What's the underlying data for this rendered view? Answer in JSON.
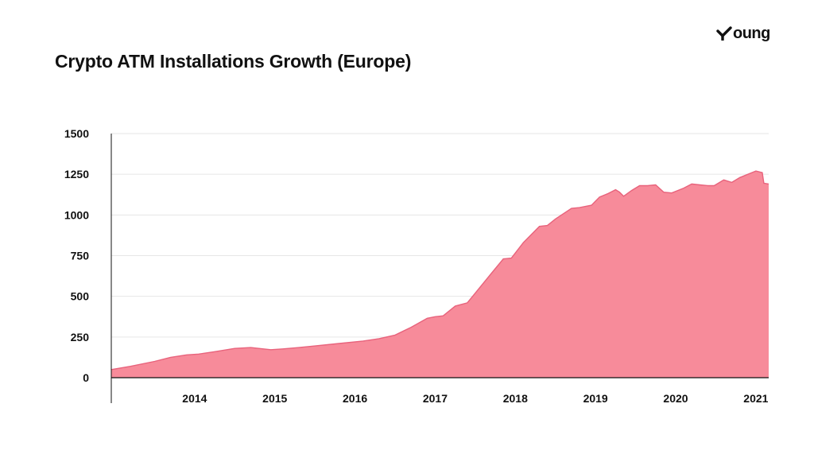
{
  "logo": {
    "text": "oung",
    "icon": "check-y-icon"
  },
  "chart_data": {
    "type": "area",
    "title": "Crypto ATM Installations Growth (Europe)",
    "xlabel": "",
    "ylabel": "",
    "ylim": [
      0,
      1500
    ],
    "xlim": [
      2013.46,
      2021.66
    ],
    "y_ticks": [
      0,
      250,
      500,
      750,
      1000,
      1250,
      1500
    ],
    "x_ticks": [
      2014,
      2015,
      2016,
      2017,
      2018,
      2019,
      2020,
      2021
    ],
    "grid": true,
    "legend": "none",
    "color": "#f78b9a",
    "line_color": "#e8637c",
    "series": [
      {
        "x": [
          2013.46,
          2013.7,
          2014.0,
          2014.2,
          2014.4,
          2014.55,
          2014.75,
          2015.0,
          2015.2,
          2015.3,
          2015.45,
          2015.6,
          2015.8,
          2016.0,
          2016.3,
          2016.6,
          2016.8,
          2017.0,
          2017.2,
          2017.4,
          2017.5,
          2017.6,
          2017.75,
          2017.9,
          2018.0,
          2018.2,
          2018.35,
          2018.45,
          2018.6,
          2018.8,
          2018.9,
          2019.0,
          2019.2,
          2019.3,
          2019.45,
          2019.55,
          2019.65,
          2019.75,
          2019.8,
          2019.85,
          2019.95,
          2020.05,
          2020.15,
          2020.25,
          2020.35,
          2020.45,
          2020.6,
          2020.7,
          2020.8,
          2020.9,
          2020.98,
          2021.1,
          2021.2,
          2021.3,
          2021.45,
          2021.5,
          2021.58,
          2021.6,
          2021.66
        ],
        "values": [
          50,
          70,
          100,
          125,
          140,
          145,
          160,
          180,
          185,
          180,
          172,
          177,
          185,
          195,
          210,
          225,
          240,
          262,
          310,
          365,
          375,
          380,
          440,
          460,
          520,
          640,
          730,
          735,
          830,
          930,
          935,
          975,
          1040,
          1045,
          1060,
          1110,
          1130,
          1155,
          1140,
          1115,
          1150,
          1180,
          1180,
          1185,
          1140,
          1135,
          1165,
          1190,
          1185,
          1180,
          1180,
          1215,
          1200,
          1230,
          1260,
          1270,
          1260,
          1195,
          1190
        ]
      }
    ]
  }
}
